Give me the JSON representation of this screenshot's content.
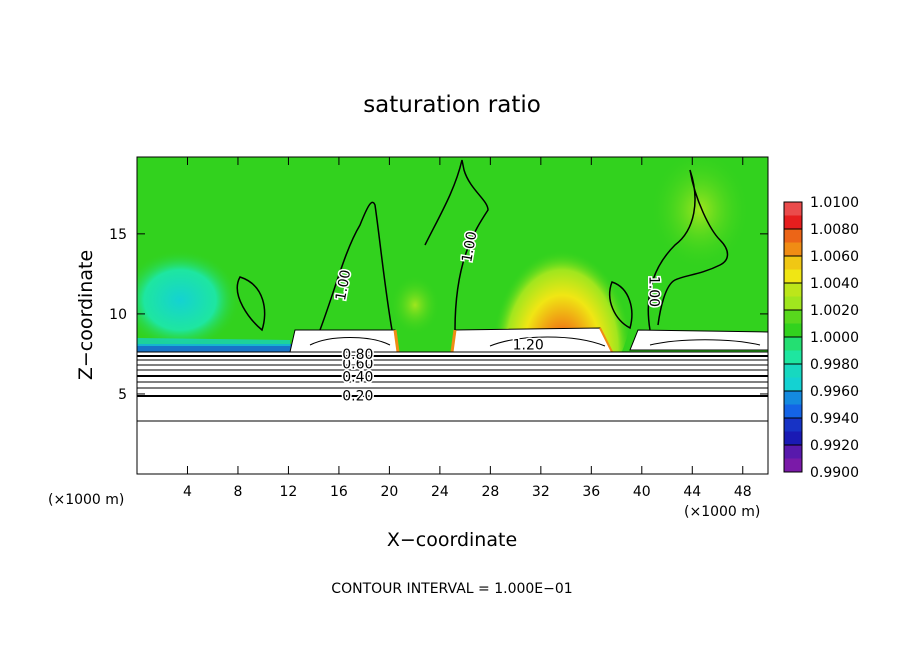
{
  "chart_data": {
    "type": "heatmap",
    "title": "saturation ratio",
    "xlabel": "X−coordinate",
    "ylabel": "Z−coordinate",
    "x_units_left": "(×1000 m)",
    "x_units_right": "(×1000 m)",
    "footer": "CONTOUR INTERVAL =  1.000E−01",
    "xlim": [
      0,
      50
    ],
    "ylim": [
      0,
      19.8
    ],
    "x_ticks": [
      4,
      8,
      12,
      16,
      20,
      24,
      28,
      32,
      36,
      40,
      44,
      48
    ],
    "x_tick_labels": [
      "4",
      "8",
      "12",
      "16",
      "20",
      "24",
      "28",
      "32",
      "36",
      "40",
      "44",
      "48"
    ],
    "y_ticks": [
      5,
      10,
      15
    ],
    "y_tick_labels": [
      "5",
      "10",
      "15"
    ],
    "colorbar": {
      "levels": [
        0.99,
        0.992,
        0.994,
        0.996,
        0.998,
        1.0,
        1.002,
        1.004,
        1.006,
        1.008,
        1.01
      ],
      "labels": [
        "0.9900",
        "0.9920",
        "0.9940",
        "0.9960",
        "0.9980",
        "1.0000",
        "1.0020",
        "1.0040",
        "1.0060",
        "1.0080",
        "1.0100"
      ],
      "colors": [
        "#7a1aa8",
        "#1a1ab4",
        "#1464e6",
        "#14d2d2",
        "#1ee6a0",
        "#32d21e",
        "#a0e61e",
        "#f0e614",
        "#f08c14",
        "#e61e1e",
        "#f0a0a0"
      ]
    },
    "contour_labels": [
      {
        "text": "0.20",
        "x": 17.5,
        "y": 4.9
      },
      {
        "text": "0.40",
        "x": 17.5,
        "y": 6.1
      },
      {
        "text": "0.60",
        "x": 17.5,
        "y": 6.9
      },
      {
        "text": "0.80",
        "x": 17.5,
        "y": 7.5
      },
      {
        "text": "1.20",
        "x": 31.0,
        "y": 8.1
      },
      {
        "text": "1.00",
        "x": 16.3,
        "y": 11.8
      },
      {
        "text": "1.00",
        "x": 26.3,
        "y": 14.2
      },
      {
        "text": "1.00",
        "x": 41.0,
        "y": 11.4
      }
    ]
  }
}
